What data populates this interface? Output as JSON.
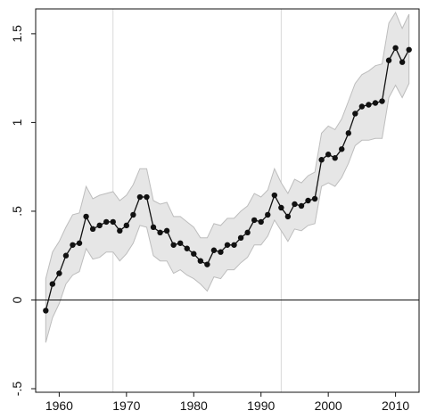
{
  "chart_data": {
    "type": "line",
    "title": "",
    "xlabel": "",
    "ylabel": "",
    "xlim": [
      1956.5,
      2013.5
    ],
    "ylim": [
      -0.52,
      1.64
    ],
    "x_ticks": [
      {
        "value": 1960,
        "label": "1960"
      },
      {
        "value": 1970,
        "label": "1970"
      },
      {
        "value": 1980,
        "label": "1980"
      },
      {
        "value": 1990,
        "label": "1990"
      },
      {
        "value": 2000,
        "label": "2000"
      },
      {
        "value": 2010,
        "label": "2010"
      }
    ],
    "y_ticks": [
      {
        "value": -0.5,
        "label": "-.5"
      },
      {
        "value": 0,
        "label": "0"
      },
      {
        "value": 0.5,
        "label": ".5"
      },
      {
        "value": 1,
        "label": "1"
      },
      {
        "value": 1.5,
        "label": "1.5"
      }
    ],
    "vertical_reference_lines": [
      1968,
      1993
    ],
    "horizontal_reference_line": 0,
    "grid": false,
    "colors": {
      "line": "#111111",
      "band_fill": "#e6e6e6",
      "band_edge": "#bdbdbd",
      "reference": "#d9d9d9",
      "zero_line": "#111111"
    },
    "series": [
      {
        "x": [
          1958,
          1959,
          1960,
          1961,
          1962,
          1963,
          1964,
          1965,
          1966,
          1967,
          1968,
          1969,
          1970,
          1971,
          1972,
          1973,
          1974,
          1975,
          1976,
          1977,
          1978,
          1979,
          1980,
          1981,
          1982,
          1983,
          1984,
          1985,
          1986,
          1987,
          1988,
          1989,
          1990,
          1991,
          1992,
          1993,
          1994,
          1995,
          1996,
          1997,
          1998,
          1999,
          2000,
          2001,
          2002,
          2003,
          2004,
          2005,
          2006,
          2007,
          2008,
          2009,
          2010,
          2011,
          2012
        ],
        "y": [
          -0.06,
          0.09,
          0.15,
          0.25,
          0.31,
          0.32,
          0.47,
          0.4,
          0.42,
          0.44,
          0.44,
          0.39,
          0.42,
          0.48,
          0.58,
          0.58,
          0.41,
          0.38,
          0.39,
          0.31,
          0.32,
          0.29,
          0.26,
          0.22,
          0.2,
          0.28,
          0.27,
          0.31,
          0.31,
          0.35,
          0.38,
          0.45,
          0.44,
          0.48,
          0.59,
          0.52,
          0.47,
          0.54,
          0.53,
          0.56,
          0.57,
          0.79,
          0.82,
          0.8,
          0.85,
          0.94,
          1.05,
          1.09,
          1.1,
          1.11,
          1.12,
          1.35,
          1.42,
          1.34,
          1.41
        ],
        "ci_lower": [
          -0.24,
          -0.1,
          -0.02,
          0.09,
          0.14,
          0.16,
          0.29,
          0.23,
          0.24,
          0.27,
          0.27,
          0.22,
          0.26,
          0.32,
          0.42,
          0.41,
          0.25,
          0.22,
          0.22,
          0.15,
          0.17,
          0.14,
          0.12,
          0.09,
          0.05,
          0.13,
          0.12,
          0.17,
          0.17,
          0.21,
          0.24,
          0.31,
          0.31,
          0.36,
          0.45,
          0.39,
          0.33,
          0.4,
          0.39,
          0.42,
          0.43,
          0.64,
          0.66,
          0.64,
          0.69,
          0.77,
          0.87,
          0.9,
          0.9,
          0.91,
          0.91,
          1.14,
          1.21,
          1.14,
          1.22
        ],
        "ci_upper": [
          0.12,
          0.27,
          0.33,
          0.41,
          0.48,
          0.49,
          0.64,
          0.57,
          0.59,
          0.6,
          0.61,
          0.56,
          0.59,
          0.65,
          0.74,
          0.74,
          0.56,
          0.54,
          0.55,
          0.47,
          0.47,
          0.44,
          0.41,
          0.35,
          0.35,
          0.43,
          0.42,
          0.46,
          0.46,
          0.5,
          0.53,
          0.6,
          0.58,
          0.62,
          0.74,
          0.66,
          0.6,
          0.68,
          0.66,
          0.7,
          0.72,
          0.94,
          0.98,
          0.96,
          1.02,
          1.12,
          1.22,
          1.27,
          1.29,
          1.32,
          1.33,
          1.56,
          1.62,
          1.53,
          1.61
        ]
      }
    ]
  }
}
